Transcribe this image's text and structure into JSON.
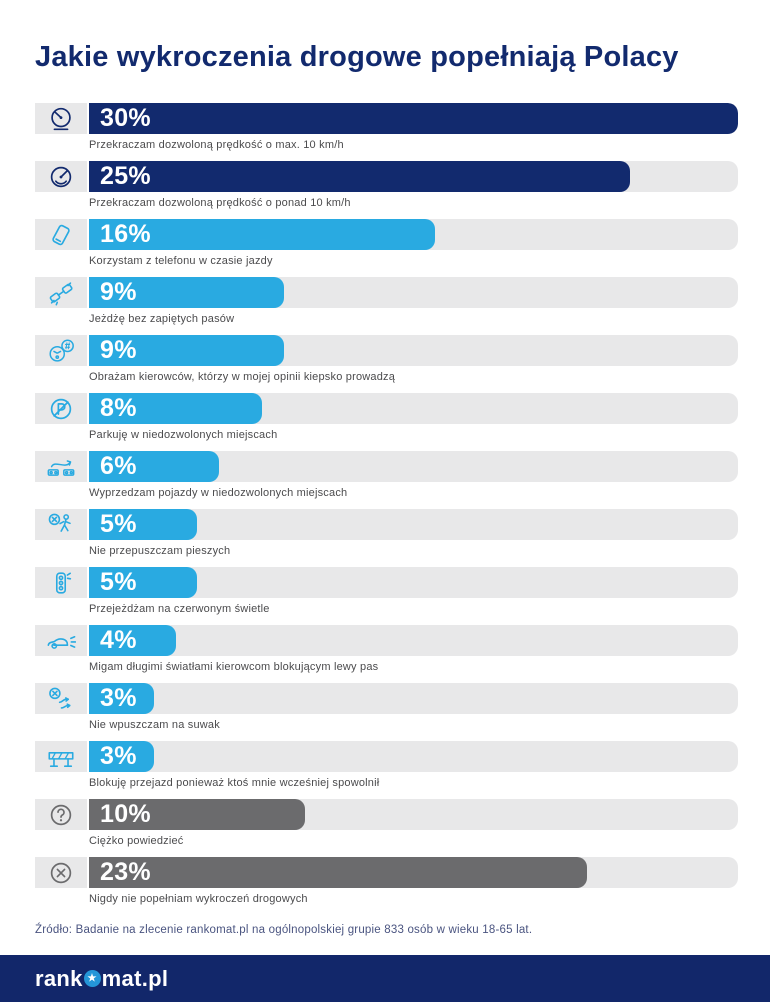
{
  "page": {
    "title": "Jakie wykroczenia drogowe popełniają Polacy",
    "source_note": "Źródło: Badanie na zlecenie rankomat.pl na ogólnopolskiej grupie 833 osób w wieku 18-65 lat.",
    "logo": {
      "prefix": "rank",
      "star": "★",
      "suffix": "mat.pl"
    }
  },
  "colors": {
    "navy": "#122a6e",
    "light_blue": "#29aae1",
    "gray": "#6b6b6d",
    "track_gray": "#e8e8e9",
    "label_text": "#4b4b4d",
    "source_text": "#4a5480",
    "footer_bg": "#12276a",
    "logo_star_bg": "#2496d8",
    "value_text": "#ffffff"
  },
  "chart_data": {
    "type": "bar",
    "orientation": "horizontal",
    "title": "Jakie wykroczenia drogowe popełniają Polacy",
    "xlim": [
      0,
      30
    ],
    "grid": false,
    "legend": false,
    "categories": [
      "Przekraczam dozwoloną prędkość o max. 10 km/h",
      "Przekraczam dozwoloną prędkość o ponad 10 km/h",
      "Korzystam z telefonu w czasie jazdy",
      "Jeżdżę bez zapiętych pasów",
      "Obrażam kierowców, którzy w mojej opinii kiepsko prowadzą",
      "Parkuję w niedozwolonych miejscach",
      "Wyprzedzam pojazdy w niedozwolonych miejscach",
      "Nie przepuszczam pieszych",
      "Przejeżdżam na czerwonym świetle",
      "Migam długimi światłami kierowcom blokującym lewy pas",
      "Nie wpuszczam na suwak",
      "Blokuję przejazd ponieważ ktoś mnie wcześniej spowolnił",
      "Ciężko powiedzieć",
      "Nigdy nie popełniam wykroczeń drogowych"
    ],
    "values": [
      30,
      25,
      16,
      9,
      9,
      8,
      6,
      5,
      5,
      4,
      3,
      3,
      10,
      23
    ],
    "rows": [
      {
        "value": 30,
        "value_label": "30%",
        "label": "Przekraczam dozwoloną prędkość o max. 10 km/h",
        "color": "#122a6e",
        "icon": "speedometer-icon"
      },
      {
        "value": 25,
        "value_label": "25%",
        "label": "Przekraczam dozwoloną prędkość o ponad 10 km/h",
        "color": "#122a6e",
        "icon": "speedometer-high-icon"
      },
      {
        "value": 16,
        "value_label": "16%",
        "label": "Korzystam z telefonu w czasie jazdy",
        "color": "#29aae1",
        "icon": "phone-icon"
      },
      {
        "value": 9,
        "value_label": "9%",
        "label": "Jeżdżę bez zapiętych pasów",
        "color": "#29aae1",
        "icon": "seatbelt-icon"
      },
      {
        "value": 9,
        "value_label": "9%",
        "label": "Obrażam kierowców, którzy w mojej opinii kiepsko prowadzą",
        "color": "#29aae1",
        "icon": "insult-driver-icon"
      },
      {
        "value": 8,
        "value_label": "8%",
        "label": "Parkuję w niedozwolonych miejscach",
        "color": "#29aae1",
        "icon": "no-parking-icon"
      },
      {
        "value": 6,
        "value_label": "6%",
        "label": "Wyprzedzam pojazdy w niedozwolonych miejscach",
        "color": "#29aae1",
        "icon": "overtake-icon"
      },
      {
        "value": 5,
        "value_label": "5%",
        "label": "Nie przepuszczam pieszych",
        "color": "#29aae1",
        "icon": "pedestrian-icon"
      },
      {
        "value": 5,
        "value_label": "5%",
        "label": "Przejeżdżam na czerwonym świetle",
        "color": "#29aae1",
        "icon": "traffic-light-icon"
      },
      {
        "value": 4,
        "value_label": "4%",
        "label": "Migam długimi światłami kierowcom blokującym lewy pas",
        "color": "#29aae1",
        "icon": "headlights-icon"
      },
      {
        "value": 3,
        "value_label": "3%",
        "label": "Nie wpuszczam na suwak",
        "color": "#29aae1",
        "icon": "zipper-merge-icon"
      },
      {
        "value": 3,
        "value_label": "3%",
        "label": "Blokuję przejazd ponieważ ktoś mnie wcześniej spowolnił",
        "color": "#29aae1",
        "icon": "road-barrier-icon"
      },
      {
        "value": 10,
        "value_label": "10%",
        "label": "Ciężko powiedzieć",
        "color": "#6b6b6d",
        "icon": "question-icon"
      },
      {
        "value": 23,
        "value_label": "23%",
        "label": "Nigdy nie popełniam wykroczeń drogowych",
        "color": "#6b6b6d",
        "icon": "never-icon"
      }
    ]
  }
}
